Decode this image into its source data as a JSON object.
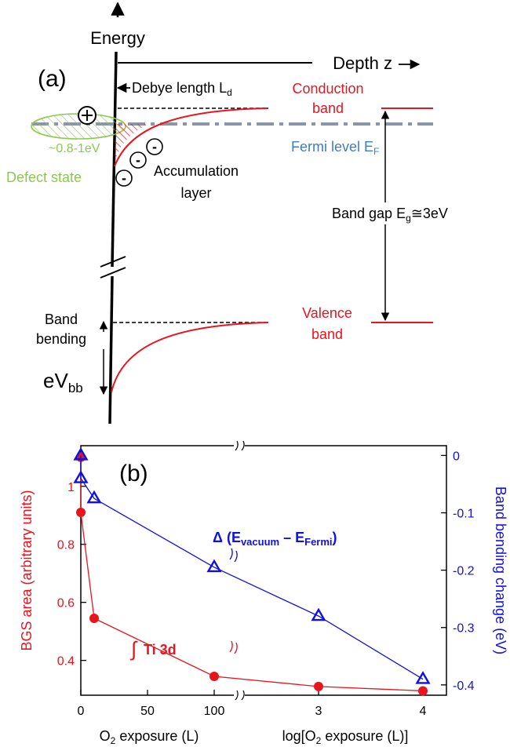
{
  "colors": {
    "red": "#e8141e",
    "blue": "#1010e0",
    "green": "#8cc850",
    "fermi_label": "#3c7fbf",
    "fermi_line": "#8a96a8",
    "black": "#000000"
  },
  "panel_a": {
    "label": "(a)",
    "energy_axis": "Energy",
    "depth_axis": "Depth z",
    "debye_length": "Debye length",
    "debye_symbol": "L",
    "debye_sub": "d",
    "conduction_band": [
      "Conduction",
      "band"
    ],
    "fermi_level": "Fermi level E",
    "fermi_sub": "F",
    "defect_energy": "~0.8-1eV",
    "defect_state": "Defect state",
    "accumulation_layer": [
      "Accumulation",
      "layer"
    ],
    "band_gap": "Band gap E",
    "band_gap_sub": "g",
    "band_gap_value": "≅3eV",
    "valence_band": [
      "Valence",
      "band"
    ],
    "band_bending": [
      "Band",
      "bending"
    ],
    "ebb_symbol": "eV",
    "ebb_sub": "bb",
    "plus_symbol": "+",
    "minus_symbol": "-"
  },
  "panel_b": {
    "label": "(b)",
    "left_axis_label": "BGS area (arbitrary units)",
    "right_axis_label": "Band bending change (eV)",
    "x_label_left_pre": "O",
    "x_label_left_sub": "2",
    "x_label_left_post": " exposure (L)",
    "x_label_right_pre": "log[O",
    "x_label_right_sub": "2",
    "x_label_right_post": " exposure (L)]",
    "annotation_delta": "Δ",
    "annotation_paren_open": "(E",
    "annotation_vac_sub": "vacuum",
    "annotation_minus": " – E",
    "annotation_fermi_sub": "Fermi",
    "annotation_paren_close": ")",
    "annotation_integral": "∫",
    "annotation_ti": "Ti 3d"
  },
  "chart_data": {
    "type": "line",
    "left_yticks": [
      {
        "v": 0.4,
        "label": "0.4"
      },
      {
        "v": 0.6,
        "label": "0.6"
      },
      {
        "v": 0.8,
        "label": "0.8"
      },
      {
        "v": 1.0,
        "label": "1"
      }
    ],
    "right_yticks": [
      {
        "v": 0,
        "label": "0"
      },
      {
        "v": -0.1,
        "label": "-0.1"
      },
      {
        "v": -0.2,
        "label": "-0.2"
      },
      {
        "v": -0.3,
        "label": "-0.3"
      },
      {
        "v": -0.4,
        "label": "-0.4"
      }
    ],
    "xticks_linear": [
      {
        "v": 0,
        "label": "0"
      },
      {
        "v": 50,
        "label": "50"
      },
      {
        "v": 100,
        "label": "100"
      }
    ],
    "xticks_log": [
      {
        "v": 3,
        "label": "3"
      },
      {
        "v": 4,
        "label": "4"
      }
    ],
    "left_ylim": [
      0.28,
      1.14
    ],
    "right_ylim": [
      -0.418,
      0.017
    ],
    "x_linear_range": [
      0,
      100
    ],
    "x_log_range": [
      2,
      4
    ],
    "series": [
      {
        "axis": "left",
        "marker": "circle",
        "points": [
          {
            "scale": "lin",
            "x": 0,
            "y": 1.1
          },
          {
            "scale": "lin",
            "x": 0,
            "y": 0.91
          },
          {
            "scale": "lin",
            "x": 10,
            "y": 0.545
          },
          {
            "scale": "lin",
            "x": 100,
            "y": 0.345
          },
          {
            "scale": "log",
            "x": 3,
            "y": 0.31
          },
          {
            "scale": "log",
            "x": 4,
            "y": 0.295
          }
        ]
      },
      {
        "axis": "right",
        "marker": "triangle",
        "points": [
          {
            "scale": "lin",
            "x": 0,
            "y": 0.0
          },
          {
            "scale": "lin",
            "x": 0,
            "y": -0.04
          },
          {
            "scale": "lin",
            "x": 10,
            "y": -0.075
          },
          {
            "scale": "lin",
            "x": 100,
            "y": -0.195
          },
          {
            "scale": "log",
            "x": 3,
            "y": -0.28
          },
          {
            "scale": "log",
            "x": 4,
            "y": -0.39
          }
        ]
      }
    ]
  }
}
